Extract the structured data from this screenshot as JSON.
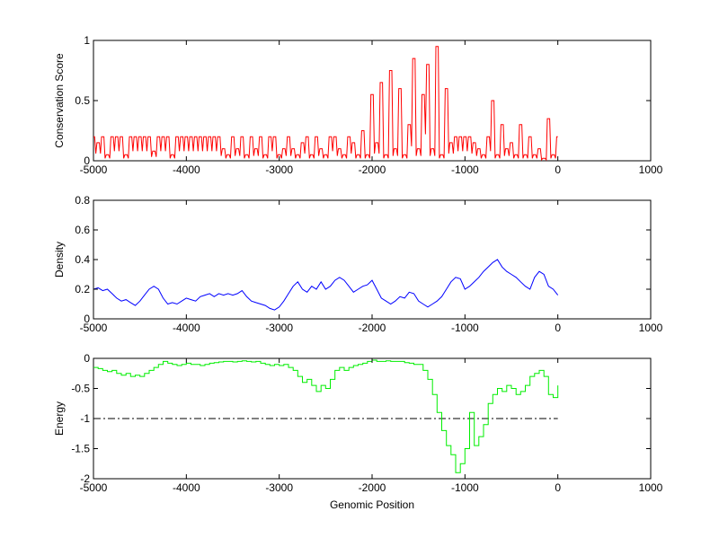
{
  "chart_data": [
    {
      "type": "line",
      "ylabel": "Conservation Score",
      "xlabel": "",
      "xlim": [
        -5000,
        1000
      ],
      "ylim": [
        0,
        1
      ],
      "xticks": [
        -5000,
        -4000,
        -3000,
        -2000,
        -1000,
        0,
        1000
      ],
      "yticks": [
        0,
        0.5,
        1
      ],
      "ytick_labels": [
        "0",
        "0.5",
        "1"
      ],
      "grid": false,
      "color": "#ff0000",
      "x_range": [
        -5000,
        0
      ],
      "x": [
        -5000,
        -4950,
        -4900,
        -4850,
        -4800,
        -4750,
        -4700,
        -4650,
        -4600,
        -4550,
        -4500,
        -4450,
        -4400,
        -4350,
        -4300,
        -4250,
        -4200,
        -4150,
        -4100,
        -4050,
        -4000,
        -3950,
        -3900,
        -3850,
        -3800,
        -3750,
        -3700,
        -3650,
        -3600,
        -3550,
        -3500,
        -3450,
        -3400,
        -3350,
        -3300,
        -3250,
        -3200,
        -3150,
        -3100,
        -3050,
        -3000,
        -2950,
        -2900,
        -2850,
        -2800,
        -2750,
        -2700,
        -2650,
        -2600,
        -2550,
        -2500,
        -2450,
        -2400,
        -2350,
        -2300,
        -2250,
        -2200,
        -2150,
        -2100,
        -2050,
        -2000,
        -1950,
        -1900,
        -1850,
        -1800,
        -1750,
        -1700,
        -1650,
        -1600,
        -1550,
        -1500,
        -1450,
        -1400,
        -1350,
        -1300,
        -1250,
        -1200,
        -1150,
        -1100,
        -1050,
        -1000,
        -950,
        -900,
        -850,
        -800,
        -750,
        -700,
        -650,
        -600,
        -550,
        -500,
        -450,
        -400,
        -350,
        -300,
        -250,
        -200,
        -150,
        -100,
        -50,
        0
      ],
      "values": [
        0.2,
        0.15,
        0.2,
        0.05,
        0.2,
        0.2,
        0.2,
        0.05,
        0.2,
        0.2,
        0.2,
        0.2,
        0.2,
        0.08,
        0.2,
        0.2,
        0.2,
        0.05,
        0.2,
        0.2,
        0.2,
        0.2,
        0.2,
        0.2,
        0.2,
        0.2,
        0.2,
        0.2,
        0.1,
        0.05,
        0.2,
        0.1,
        0.2,
        0.05,
        0.2,
        0.1,
        0.2,
        0.05,
        0.2,
        0.2,
        0.05,
        0.1,
        0.2,
        0.1,
        0.05,
        0.15,
        0.2,
        0.05,
        0.2,
        0.1,
        0.05,
        0.2,
        0.2,
        0.1,
        0.05,
        0.2,
        0.15,
        0.05,
        0.25,
        0.05,
        0.55,
        0.15,
        0.65,
        0.05,
        0.75,
        0.1,
        0.6,
        0.05,
        0.3,
        0.85,
        0.1,
        0.55,
        0.8,
        0.1,
        0.95,
        0.05,
        0.6,
        0.15,
        0.2,
        0.2,
        0.2,
        0.2,
        0.15,
        0.1,
        0.05,
        0.2,
        0.5,
        0.05,
        0.3,
        0.1,
        0.15,
        0.05,
        0.3,
        0.05,
        0.2,
        0.05,
        0.1,
        0.02,
        0.35,
        0.05,
        0.2
      ]
    },
    {
      "type": "line",
      "ylabel": "Density",
      "xlabel": "",
      "xlim": [
        -5000,
        1000
      ],
      "ylim": [
        0,
        0.8
      ],
      "xticks": [
        -5000,
        -4000,
        -3000,
        -2000,
        -1000,
        0,
        1000
      ],
      "yticks": [
        0,
        0.2,
        0.4,
        0.6,
        0.8
      ],
      "ytick_labels": [
        "0",
        "0.2",
        "0.4",
        "0.6",
        "0.8"
      ],
      "grid": false,
      "color": "#0000ff",
      "x_range": [
        -5000,
        0
      ],
      "x": [
        -5000,
        -4950,
        -4900,
        -4850,
        -4800,
        -4750,
        -4700,
        -4650,
        -4600,
        -4550,
        -4500,
        -4450,
        -4400,
        -4350,
        -4300,
        -4250,
        -4200,
        -4150,
        -4100,
        -4050,
        -4000,
        -3950,
        -3900,
        -3850,
        -3800,
        -3750,
        -3700,
        -3650,
        -3600,
        -3550,
        -3500,
        -3450,
        -3400,
        -3350,
        -3300,
        -3250,
        -3200,
        -3150,
        -3100,
        -3050,
        -3000,
        -2950,
        -2900,
        -2850,
        -2800,
        -2750,
        -2700,
        -2650,
        -2600,
        -2550,
        -2500,
        -2450,
        -2400,
        -2350,
        -2300,
        -2250,
        -2200,
        -2150,
        -2100,
        -2050,
        -2000,
        -1950,
        -1900,
        -1850,
        -1800,
        -1750,
        -1700,
        -1650,
        -1600,
        -1550,
        -1500,
        -1450,
        -1400,
        -1350,
        -1300,
        -1250,
        -1200,
        -1150,
        -1100,
        -1050,
        -1000,
        -950,
        -900,
        -850,
        -800,
        -750,
        -700,
        -650,
        -600,
        -550,
        -500,
        -450,
        -400,
        -350,
        -300,
        -250,
        -200,
        -150,
        -100,
        -50,
        0
      ],
      "values": [
        0.2,
        0.21,
        0.19,
        0.2,
        0.17,
        0.14,
        0.12,
        0.13,
        0.11,
        0.09,
        0.12,
        0.16,
        0.2,
        0.22,
        0.2,
        0.14,
        0.1,
        0.11,
        0.1,
        0.12,
        0.14,
        0.13,
        0.12,
        0.15,
        0.16,
        0.17,
        0.15,
        0.17,
        0.16,
        0.17,
        0.16,
        0.17,
        0.19,
        0.15,
        0.12,
        0.11,
        0.1,
        0.09,
        0.07,
        0.06,
        0.08,
        0.12,
        0.17,
        0.22,
        0.25,
        0.2,
        0.18,
        0.22,
        0.2,
        0.25,
        0.2,
        0.22,
        0.26,
        0.28,
        0.26,
        0.22,
        0.18,
        0.2,
        0.22,
        0.23,
        0.26,
        0.2,
        0.14,
        0.12,
        0.1,
        0.12,
        0.15,
        0.14,
        0.18,
        0.17,
        0.12,
        0.1,
        0.08,
        0.1,
        0.12,
        0.15,
        0.2,
        0.25,
        0.28,
        0.27,
        0.2,
        0.22,
        0.25,
        0.28,
        0.32,
        0.35,
        0.38,
        0.4,
        0.35,
        0.32,
        0.3,
        0.28,
        0.25,
        0.22,
        0.2,
        0.28,
        0.32,
        0.3,
        0.22,
        0.2,
        0.16
      ]
    },
    {
      "type": "line",
      "ylabel": "Energy",
      "xlabel": "Genomic Position",
      "xlim": [
        -5000,
        1000
      ],
      "ylim": [
        -2,
        0
      ],
      "xticks": [
        -5000,
        -4000,
        -3000,
        -2000,
        -1000,
        0,
        1000
      ],
      "yticks": [
        -2,
        -1.5,
        -1,
        -0.5,
        0
      ],
      "ytick_labels": [
        "-2",
        "-1.5",
        "-1",
        "-0.5",
        "0"
      ],
      "grid": false,
      "color": "#00ee00",
      "threshold": -1,
      "x_range": [
        -5000,
        0
      ],
      "x": [
        -5000,
        -4950,
        -4900,
        -4850,
        -4800,
        -4750,
        -4700,
        -4650,
        -4600,
        -4550,
        -4500,
        -4450,
        -4400,
        -4350,
        -4300,
        -4250,
        -4200,
        -4150,
        -4100,
        -4050,
        -4000,
        -3950,
        -3900,
        -3850,
        -3800,
        -3750,
        -3700,
        -3650,
        -3600,
        -3550,
        -3500,
        -3450,
        -3400,
        -3350,
        -3300,
        -3250,
        -3200,
        -3150,
        -3100,
        -3050,
        -3000,
        -2950,
        -2900,
        -2850,
        -2800,
        -2750,
        -2700,
        -2650,
        -2600,
        -2550,
        -2500,
        -2450,
        -2400,
        -2350,
        -2300,
        -2250,
        -2200,
        -2150,
        -2100,
        -2050,
        -2000,
        -1950,
        -1900,
        -1850,
        -1800,
        -1750,
        -1700,
        -1650,
        -1600,
        -1550,
        -1500,
        -1450,
        -1400,
        -1350,
        -1300,
        -1250,
        -1200,
        -1150,
        -1100,
        -1050,
        -1000,
        -950,
        -900,
        -850,
        -800,
        -750,
        -700,
        -650,
        -600,
        -550,
        -500,
        -450,
        -400,
        -350,
        -300,
        -250,
        -200,
        -150,
        -100,
        -50,
        0
      ],
      "values": [
        -0.15,
        -0.17,
        -0.2,
        -0.22,
        -0.2,
        -0.25,
        -0.28,
        -0.25,
        -0.3,
        -0.28,
        -0.3,
        -0.25,
        -0.2,
        -0.15,
        -0.1,
        -0.05,
        -0.08,
        -0.1,
        -0.12,
        -0.1,
        -0.08,
        -0.1,
        -0.1,
        -0.12,
        -0.1,
        -0.08,
        -0.07,
        -0.06,
        -0.05,
        -0.05,
        -0.06,
        -0.05,
        -0.04,
        -0.05,
        -0.06,
        -0.05,
        -0.08,
        -0.1,
        -0.12,
        -0.1,
        -0.12,
        -0.1,
        -0.15,
        -0.2,
        -0.3,
        -0.4,
        -0.35,
        -0.45,
        -0.55,
        -0.45,
        -0.5,
        -0.35,
        -0.2,
        -0.15,
        -0.2,
        -0.15,
        -0.12,
        -0.1,
        -0.08,
        -0.05,
        -0.03,
        -0.05,
        -0.05,
        -0.04,
        -0.05,
        -0.05,
        -0.05,
        -0.07,
        -0.08,
        -0.1,
        -0.1,
        -0.2,
        -0.35,
        -0.6,
        -0.9,
        -1.2,
        -1.45,
        -1.6,
        -1.9,
        -1.75,
        -1.5,
        -0.9,
        -1.45,
        -1.3,
        -1.1,
        -0.75,
        -0.6,
        -0.5,
        -0.55,
        -0.45,
        -0.5,
        -0.6,
        -0.55,
        -0.45,
        -0.3,
        -0.25,
        -0.2,
        -0.3,
        -0.6,
        -0.65,
        -0.45
      ]
    }
  ]
}
